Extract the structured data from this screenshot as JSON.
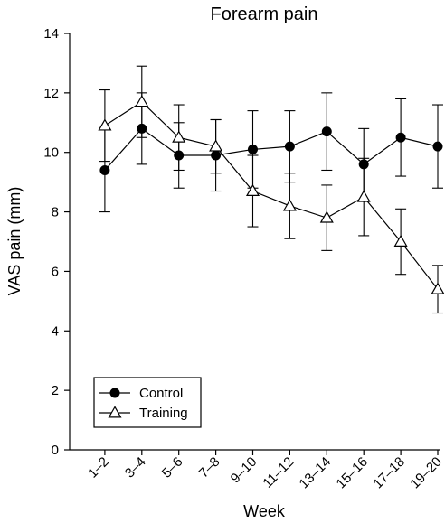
{
  "chart_data": {
    "type": "line",
    "title": "Forearm pain",
    "xlabel": "Week",
    "ylabel": "VAS pain (mm)",
    "ylim": [
      0,
      14
    ],
    "yticks": [
      0,
      2,
      4,
      6,
      8,
      10,
      12,
      14
    ],
    "categories": [
      "1–2",
      "3–4",
      "5–6",
      "7–8",
      "9–10",
      "11–12",
      "13–14",
      "15–16",
      "17–18",
      "19–20"
    ],
    "grid": false,
    "legend_position": "bottom-left",
    "series": [
      {
        "name": "Control",
        "marker": "filled-circle",
        "color": "#000000",
        "values": [
          9.4,
          10.8,
          9.9,
          9.9,
          10.1,
          10.2,
          10.7,
          9.6,
          10.5,
          10.2
        ],
        "error": [
          1.4,
          1.2,
          1.1,
          1.2,
          1.3,
          1.2,
          1.3,
          1.2,
          1.3,
          1.4
        ]
      },
      {
        "name": "Training",
        "marker": "open-triangle",
        "color": "#000000",
        "values": [
          10.9,
          11.7,
          10.5,
          10.2,
          8.7,
          8.2,
          7.8,
          8.5,
          7.0,
          5.4
        ],
        "error": [
          1.2,
          1.2,
          1.1,
          0.9,
          1.2,
          1.1,
          1.1,
          1.3,
          1.1,
          0.8
        ]
      }
    ]
  }
}
